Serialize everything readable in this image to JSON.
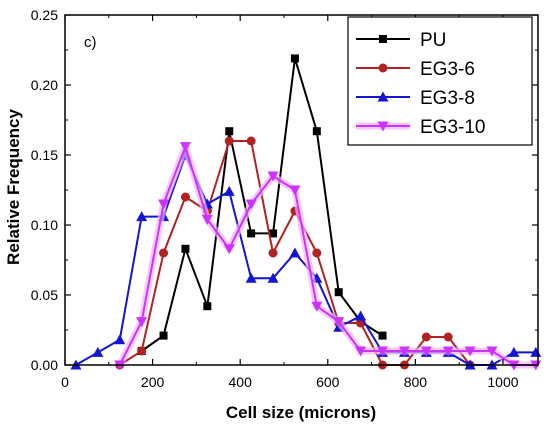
{
  "chart_data": {
    "type": "line",
    "panel_label": "c)",
    "title": "",
    "xlabel": "Cell size (microns)",
    "ylabel": "Relative Frequency",
    "xlim": [
      0,
      1080
    ],
    "ylim": [
      0,
      0.25
    ],
    "xticks": [
      0,
      200,
      400,
      600,
      800,
      1000
    ],
    "yticks": [
      0.0,
      0.05,
      0.1,
      0.15,
      0.2,
      0.25
    ],
    "ytick_labels": [
      "0.00",
      "0.05",
      "0.10",
      "0.15",
      "0.20",
      "0.25"
    ],
    "legend_position": "top-right",
    "series": [
      {
        "name": "PU",
        "color": "#000000",
        "marker": "square",
        "x": [
          175,
          225,
          275,
          325,
          375,
          425,
          475,
          525,
          575,
          625,
          675,
          725
        ],
        "y": [
          0.01,
          0.021,
          0.083,
          0.042,
          0.167,
          0.094,
          0.094,
          0.219,
          0.167,
          0.052,
          0.031,
          0.021
        ]
      },
      {
        "name": "EG3-6",
        "color": "#b22222",
        "marker": "circle",
        "x": [
          125,
          175,
          225,
          275,
          325,
          375,
          425,
          475,
          525,
          575,
          625,
          675,
          725,
          775,
          825,
          875,
          925
        ],
        "y": [
          0.0,
          0.01,
          0.08,
          0.12,
          0.11,
          0.16,
          0.16,
          0.08,
          0.11,
          0.08,
          0.03,
          0.03,
          0.0,
          0.0,
          0.02,
          0.02,
          0.0
        ]
      },
      {
        "name": "EG3-8",
        "color": "#1414d4",
        "marker": "triangle-up",
        "x": [
          25,
          75,
          125,
          175,
          225,
          275,
          325,
          375,
          425,
          475,
          525,
          575,
          625,
          675,
          725,
          775,
          825,
          875,
          925,
          975,
          1025,
          1075
        ],
        "y": [
          0.0,
          0.009,
          0.018,
          0.106,
          0.106,
          0.15,
          0.115,
          0.124,
          0.062,
          0.062,
          0.08,
          0.062,
          0.027,
          0.035,
          0.009,
          0.009,
          0.009,
          0.009,
          0.0,
          0.0,
          0.009,
          0.009
        ]
      },
      {
        "name": "EG3-10",
        "color": "#cc33ff",
        "marker": "triangle-down",
        "x": [
          125,
          175,
          225,
          275,
          325,
          375,
          425,
          475,
          525,
          575,
          625,
          675,
          725,
          775,
          825,
          875,
          925,
          975,
          1025,
          1075
        ],
        "y": [
          0.0,
          0.031,
          0.115,
          0.156,
          0.104,
          0.083,
          0.115,
          0.135,
          0.125,
          0.042,
          0.031,
          0.01,
          0.01,
          0.01,
          0.01,
          0.01,
          0.01,
          0.01,
          0.0,
          0.0
        ]
      }
    ]
  }
}
